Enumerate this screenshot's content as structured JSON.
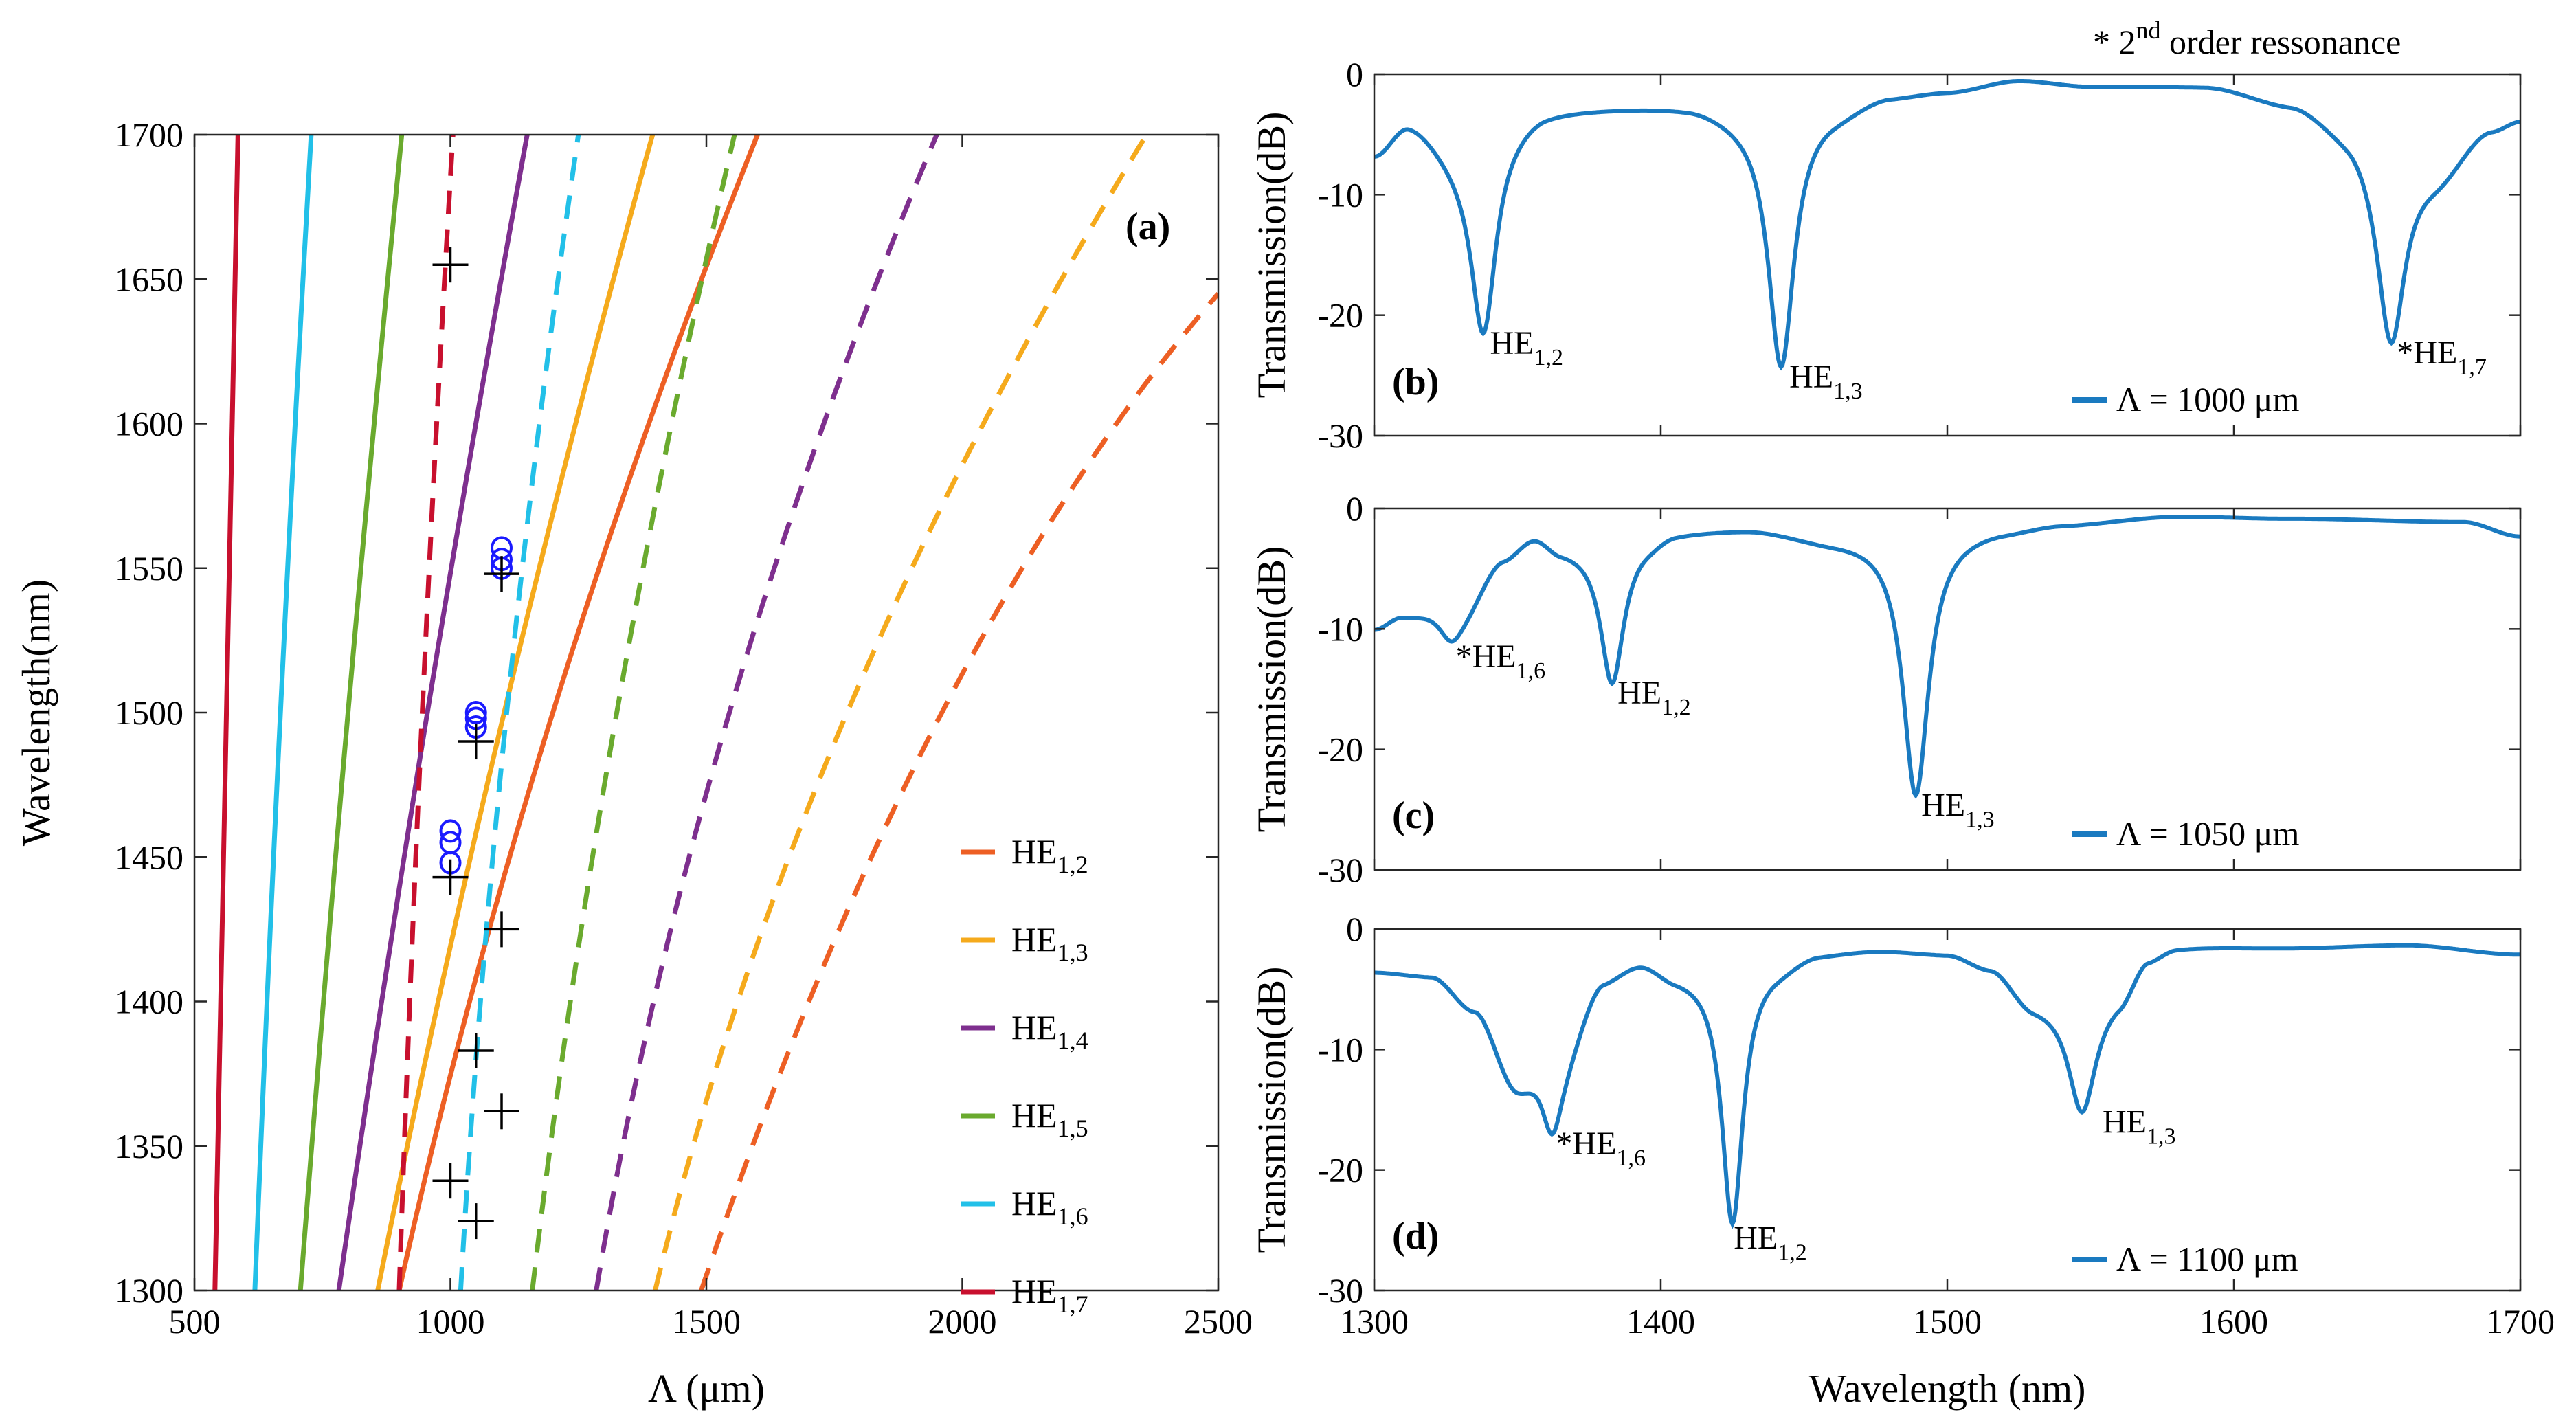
{
  "note_text": {
    "prefix": "* 2",
    "sup": "nd",
    "suffix": " order ressonance"
  },
  "colors": {
    "HE12": "#ed5f24",
    "HE13": "#f5aa1c",
    "HE14": "#7e2f8e",
    "HE15": "#6aaa2e",
    "HE16": "#22c0e8",
    "HE17": "#c8102e",
    "trace": "#1a7ac0",
    "marker_circle": "#1a1aff",
    "marker_cross": "#000000"
  },
  "chart_data": [
    {
      "id": "a",
      "type": "line",
      "panel_label": "(a)",
      "xlabel": "Λ (μm)",
      "ylabel": "Wavelength(nm)",
      "xlim": [
        500,
        2500
      ],
      "ylim": [
        1300,
        1700
      ],
      "xticks": [
        "500",
        "1000",
        "1500",
        "2000",
        "2500"
      ],
      "yticks": [
        "1300",
        "1350",
        "1400",
        "1450",
        "1500",
        "1550",
        "1600",
        "1650",
        "1700"
      ],
      "grid": false,
      "legend_position": "lower-right",
      "legend": [
        {
          "base": "HE",
          "sub": "1,2",
          "color_key": "HE12"
        },
        {
          "base": "HE",
          "sub": "1,3",
          "color_key": "HE13"
        },
        {
          "base": "HE",
          "sub": "1,4",
          "color_key": "HE14"
        },
        {
          "base": "HE",
          "sub": "1,5",
          "color_key": "HE15"
        },
        {
          "base": "HE",
          "sub": "1,6",
          "color_key": "HE16"
        },
        {
          "base": "HE",
          "sub": "1,7",
          "color_key": "HE17"
        }
      ],
      "series": [
        {
          "name": "HE1,7 (1st order)",
          "color_key": "HE17",
          "dash": false,
          "points": [
            [
              540,
              1300
            ],
            [
              560,
              1500
            ],
            [
              585,
              1700
            ]
          ]
        },
        {
          "name": "HE1,6 (1st order)",
          "color_key": "HE16",
          "dash": false,
          "points": [
            [
              618,
              1300
            ],
            [
              668,
              1500
            ],
            [
              728,
              1700
            ]
          ]
        },
        {
          "name": "HE1,5 (1st order)",
          "color_key": "HE15",
          "dash": false,
          "points": [
            [
              707,
              1300
            ],
            [
              800,
              1500
            ],
            [
              905,
              1700
            ]
          ]
        },
        {
          "name": "HE1,4 (1st order)",
          "color_key": "HE14",
          "dash": false,
          "points": [
            [
              782,
              1300
            ],
            [
              955,
              1500
            ],
            [
              1150,
              1700
            ]
          ]
        },
        {
          "name": "HE1,3 (1st order)",
          "color_key": "HE13",
          "dash": false,
          "points": [
            [
              858,
              1300
            ],
            [
              1105,
              1500
            ],
            [
              1395,
              1700
            ]
          ]
        },
        {
          "name": "HE1,2 (1st order)",
          "color_key": "HE12",
          "dash": false,
          "points": [
            [
              900,
              1300
            ],
            [
              1200,
              1500
            ],
            [
              1600,
              1700
            ]
          ]
        },
        {
          "name": "HE1,7 (2nd order)",
          "color_key": "HE17",
          "dash": true,
          "points": [
            [
              900,
              1300
            ],
            [
              945,
              1500
            ],
            [
              1005,
              1700
            ]
          ]
        },
        {
          "name": "HE1,6 (2nd order)",
          "color_key": "HE16",
          "dash": true,
          "points": [
            [
              1020,
              1300
            ],
            [
              1110,
              1500
            ],
            [
              1250,
              1700
            ]
          ]
        },
        {
          "name": "HE1,5 (2nd order)",
          "color_key": "HE15",
          "dash": true,
          "points": [
            [
              1160,
              1300
            ],
            [
              1325,
              1500
            ],
            [
              1555,
              1700
            ]
          ]
        },
        {
          "name": "HE1,4 (2nd order)",
          "color_key": "HE14",
          "dash": true,
          "points": [
            [
              1285,
              1300
            ],
            [
              1545,
              1500
            ],
            [
              1950,
              1700
            ]
          ]
        },
        {
          "name": "HE1,3 (2nd order)",
          "color_key": "HE13",
          "dash": true,
          "points": [
            [
              1400,
              1300
            ],
            [
              1775,
              1500
            ],
            [
              2360,
              1700
            ]
          ]
        },
        {
          "name": "HE1,2 (2nd order)",
          "color_key": "HE12",
          "dash": true,
          "points": [
            [
              1490,
              1300
            ],
            [
              1960,
              1500
            ],
            [
              2500,
              1645
            ]
          ]
        }
      ],
      "circle_markers": [
        [
          1000,
          1448
        ],
        [
          1000,
          1455
        ],
        [
          1000,
          1459
        ],
        [
          1050,
          1495
        ],
        [
          1050,
          1498
        ],
        [
          1050,
          1500
        ],
        [
          1100,
          1550
        ],
        [
          1100,
          1553
        ],
        [
          1100,
          1557
        ]
      ],
      "cross_markers": [
        [
          1000,
          1655
        ],
        [
          1000,
          1443
        ],
        [
          1000,
          1338
        ],
        [
          1050,
          1490
        ],
        [
          1050,
          1383
        ],
        [
          1050,
          1324
        ],
        [
          1100,
          1548
        ],
        [
          1100,
          1425
        ],
        [
          1100,
          1362
        ]
      ]
    },
    {
      "id": "b",
      "type": "line",
      "panel_label": "(b)",
      "xlabel": "",
      "ylabel": "Transmission(dB)",
      "xlim": [
        1300,
        1700
      ],
      "ylim": [
        -30,
        0
      ],
      "xticks": [],
      "yticks": [
        "0",
        "-10",
        "-20",
        "-30"
      ],
      "legend_position": "bottom-right",
      "legend": "Λ = 1000 μm",
      "baseline": [
        [
          1300,
          -6.5
        ],
        [
          1312,
          -3.8
        ],
        [
          1330,
          -6
        ],
        [
          1345,
          -3.5
        ],
        [
          1360,
          -2.7
        ],
        [
          1410,
          -2.5
        ],
        [
          1430,
          -3.2
        ],
        [
          1460,
          -2.8
        ],
        [
          1480,
          -1.6
        ],
        [
          1500,
          -1.3
        ],
        [
          1525,
          -0.4
        ],
        [
          1550,
          -0.9
        ],
        [
          1590,
          -0.9
        ],
        [
          1620,
          -2.2
        ],
        [
          1640,
          -4
        ],
        [
          1670,
          -8
        ],
        [
          1690,
          -4.3
        ],
        [
          1700,
          -3.6
        ]
      ],
      "dips": [
        {
          "center": 1338,
          "depth": -21.5,
          "width": 5.5,
          "label": {
            "prefix": "",
            "base": "HE",
            "sub": "1,2"
          }
        },
        {
          "center": 1442,
          "depth": -24.3,
          "width": 5.5,
          "label": {
            "prefix": "",
            "base": "HE",
            "sub": "1,3"
          }
        },
        {
          "center": 1655,
          "depth": -22.3,
          "width": 6,
          "label": {
            "prefix": "*",
            "base": "HE",
            "sub": "1,7"
          }
        }
      ]
    },
    {
      "id": "c",
      "type": "line",
      "panel_label": "(c)",
      "xlabel": "",
      "ylabel": "Transmission(dB)",
      "xlim": [
        1300,
        1700
      ],
      "ylim": [
        -30,
        0
      ],
      "xticks": [],
      "yticks": [
        "0",
        "-10",
        "-20",
        "-30"
      ],
      "legend_position": "bottom-right",
      "legend": "Λ = 1050 μm",
      "baseline": [
        [
          1300,
          -10
        ],
        [
          1310,
          -8.8
        ],
        [
          1330,
          -7.5
        ],
        [
          1345,
          -3.5
        ],
        [
          1356,
          -1.9
        ],
        [
          1365,
          -3
        ],
        [
          1395,
          -2.3
        ],
        [
          1405,
          -1.7
        ],
        [
          1430,
          -1.6
        ],
        [
          1460,
          -2.5
        ],
        [
          1500,
          -1.8
        ],
        [
          1520,
          -1.6
        ],
        [
          1540,
          -1.2
        ],
        [
          1580,
          -0.6
        ],
        [
          1620,
          -0.8
        ],
        [
          1680,
          -1.1
        ],
        [
          1700,
          -2.3
        ]
      ],
      "dips": [
        {
          "center": 1327,
          "depth": -11,
          "width": 6,
          "label": {
            "prefix": "*",
            "base": "HE",
            "sub": "1,6"
          }
        },
        {
          "center": 1383,
          "depth": -14.5,
          "width": 5,
          "label": {
            "prefix": "",
            "base": "HE",
            "sub": "1,2"
          }
        },
        {
          "center": 1489,
          "depth": -23.8,
          "width": 5.5,
          "label": {
            "prefix": "",
            "base": "HE",
            "sub": "1,3"
          }
        }
      ]
    },
    {
      "id": "d",
      "type": "line",
      "panel_label": "(d)",
      "xlabel": "Wavelength (nm)",
      "ylabel": "Transmission(dB)",
      "xlim": [
        1300,
        1700
      ],
      "ylim": [
        -30,
        0
      ],
      "xticks": [
        "1300",
        "1400",
        "1500",
        "1600",
        "1700"
      ],
      "yticks": [
        "0",
        "-10",
        "-20",
        "-30"
      ],
      "legend_position": "bottom-right",
      "legend": "Λ = 1100 μm",
      "baseline": [
        [
          1300,
          -3.5
        ],
        [
          1320,
          -3.8
        ],
        [
          1335,
          -6.5
        ],
        [
          1350,
          -13
        ],
        [
          1365,
          -9
        ],
        [
          1380,
          -3.5
        ],
        [
          1393,
          -2.4
        ],
        [
          1405,
          -3.5
        ],
        [
          1440,
          -2.8
        ],
        [
          1455,
          -1.8
        ],
        [
          1475,
          -1.6
        ],
        [
          1500,
          -1.9
        ],
        [
          1515,
          -3
        ],
        [
          1530,
          -6
        ],
        [
          1560,
          -5
        ],
        [
          1570,
          -2
        ],
        [
          1580,
          -1.3
        ],
        [
          1620,
          -1.5
        ],
        [
          1660,
          -1.3
        ],
        [
          1700,
          -2.1
        ]
      ],
      "dips": [
        {
          "center": 1362,
          "depth": -17,
          "width": 5,
          "label": {
            "prefix": "*",
            "base": "HE",
            "sub": "1,6"
          }
        },
        {
          "center": 1425,
          "depth": -24.5,
          "width": 4.5,
          "label": {
            "prefix": "",
            "base": "HE",
            "sub": "1,2"
          }
        },
        {
          "center": 1547,
          "depth": -15.2,
          "width": 6,
          "label": {
            "prefix": "",
            "base": "HE",
            "sub": "1,3"
          }
        }
      ]
    }
  ]
}
